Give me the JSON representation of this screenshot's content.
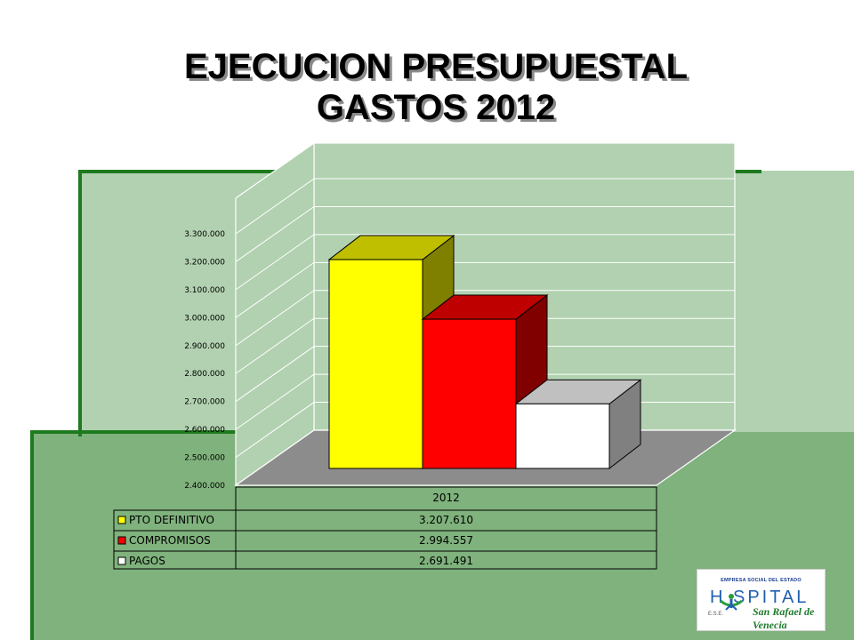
{
  "title_line1": "EJECUCION PRESUPUESTAL",
  "title_line2": "GASTOS 2012",
  "logo": {
    "top_text": "EMPRESA SOCIAL DEL ESTADO",
    "main_text": "H  SPITAL",
    "ese_text": "E.S.E.",
    "sub_text": "San Rafael de Venecia"
  },
  "colors": {
    "pto_definitivo": "#ffff00",
    "compromisos": "#ff0000",
    "pagos": "#ffffff"
  },
  "chart_data": {
    "type": "bar",
    "style": "3d",
    "categories": [
      "2012"
    ],
    "series": [
      {
        "name": "PTO DEFINITIVO",
        "values": [
          3207610
        ],
        "value_label": "3.207.610",
        "color": "#ffff00"
      },
      {
        "name": "COMPROMISOS",
        "values": [
          2994557
        ],
        "value_label": "2.994.557",
        "color": "#ff0000"
      },
      {
        "name": "PAGOS",
        "values": [
          2691491
        ],
        "value_label": "2.691.491",
        "color": "#ffffff"
      }
    ],
    "ylim": [
      2400000,
      3300000
    ],
    "yticks": [
      2400000,
      2500000,
      2600000,
      2700000,
      2800000,
      2900000,
      3000000,
      3100000,
      3200000,
      3300000
    ],
    "ytick_labels": [
      "2.400.000",
      "2.500.000",
      "2.600.000",
      "2.700.000",
      "2.800.000",
      "2.900.000",
      "3.000.000",
      "3.100.000",
      "3.200.000",
      "3.300.000"
    ],
    "grid": true,
    "legend": "data-table-bottom",
    "title": "",
    "xlabel": "",
    "ylabel": ""
  }
}
